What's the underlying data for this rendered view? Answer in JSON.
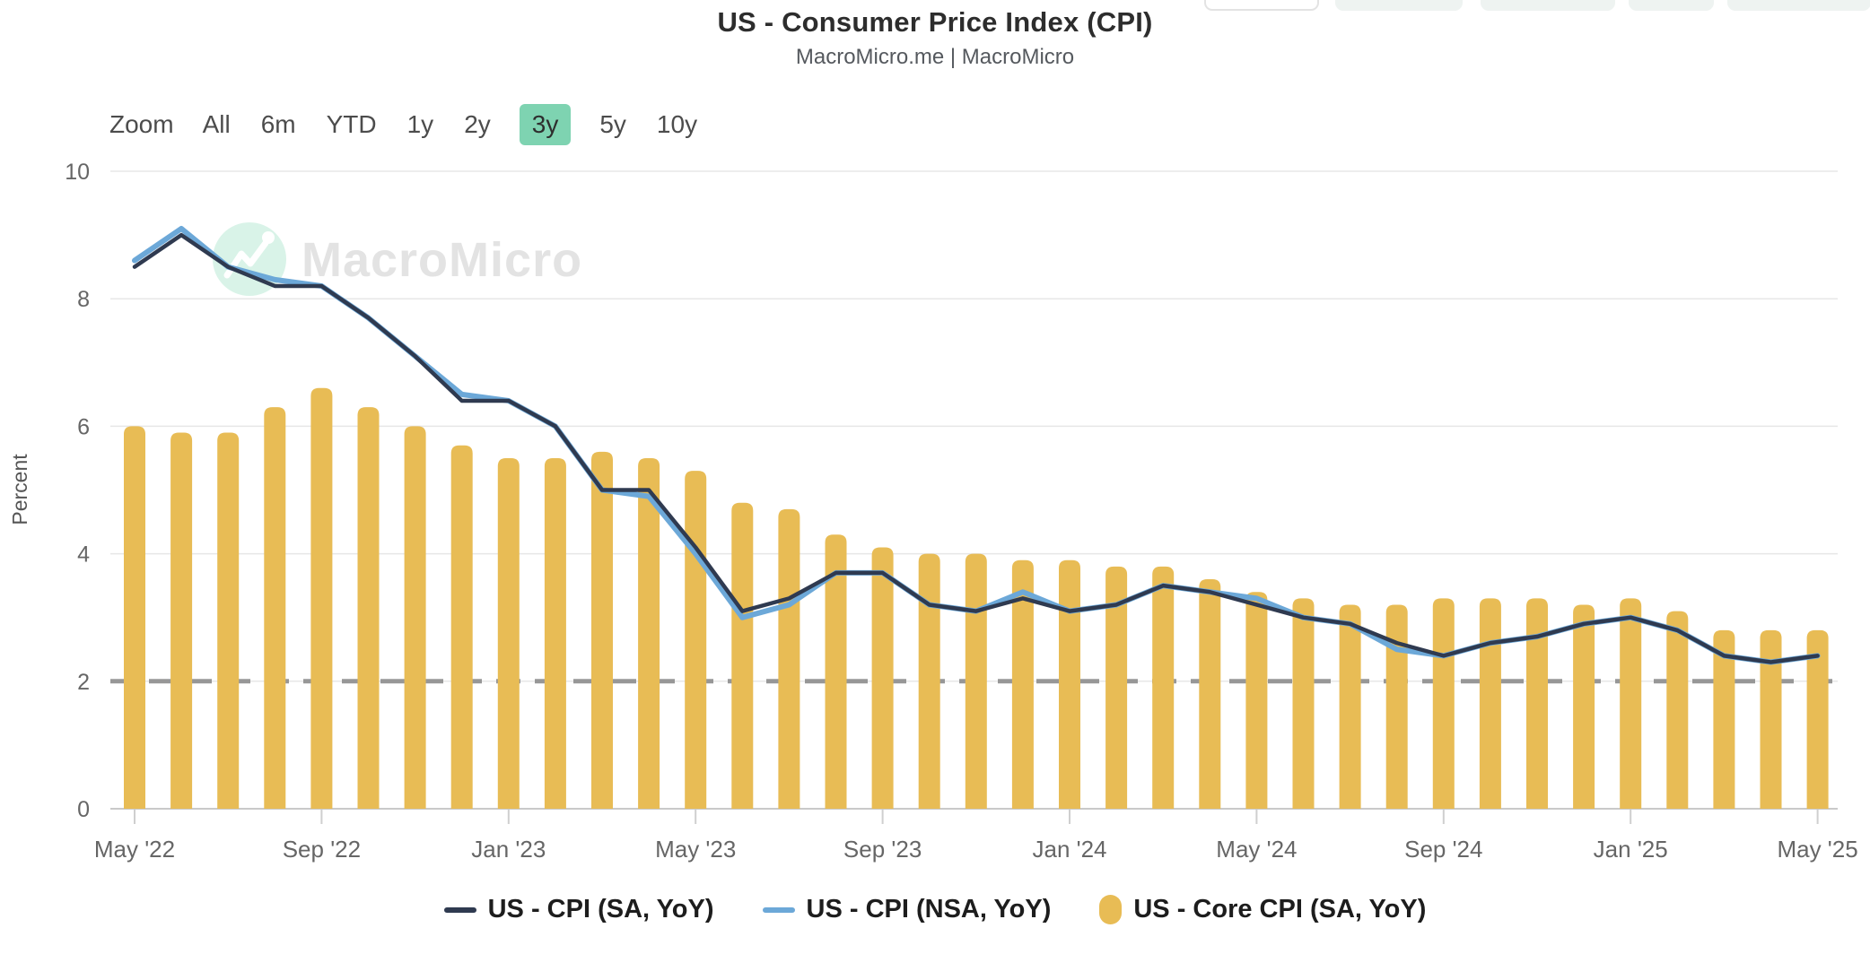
{
  "header": {
    "title": "US - Consumer Price Index (CPI)",
    "subtitle": "MacroMicro.me | MacroMicro"
  },
  "toolbar": {
    "zoom_label": "Zoom",
    "ranges": [
      {
        "label": "All",
        "selected": false
      },
      {
        "label": "6m",
        "selected": false
      },
      {
        "label": "YTD",
        "selected": false
      },
      {
        "label": "1y",
        "selected": false
      },
      {
        "label": "2y",
        "selected": false
      },
      {
        "label": "3y",
        "selected": true
      },
      {
        "label": "5y",
        "selected": false
      },
      {
        "label": "10y",
        "selected": false
      }
    ],
    "selected_bg": "#7ed3b1"
  },
  "watermark": {
    "text": "MacroMicro",
    "circle_color": "#d9f3e8",
    "text_color": "#e3e3e3"
  },
  "axes": {
    "y_label": "Percent",
    "y_ticks": [
      10,
      8,
      6,
      4,
      2,
      0
    ],
    "x_tick_labels": [
      "May '22",
      "Sep '22",
      "Jan '23",
      "May '23",
      "Sep '23",
      "Jan '24",
      "May '24",
      "Sep '24",
      "Jan '25",
      "May '25"
    ]
  },
  "legend": {
    "items": [
      {
        "label": "US - CPI (SA, YoY)",
        "type": "line",
        "color": "#2f3a50"
      },
      {
        "label": "US - CPI (NSA, YoY)",
        "type": "line",
        "color": "#6ca8d8"
      },
      {
        "label": "US - Core CPI (SA, YoY)",
        "type": "bar",
        "color": "#e8bc55"
      }
    ]
  },
  "chart_data": {
    "type": "combo",
    "title": "US - Consumer Price Index (CPI)",
    "ylabel": "Percent",
    "ylim": [
      0,
      10
    ],
    "y_gridlines": [
      0,
      2,
      4,
      6,
      8,
      10
    ],
    "grid": true,
    "legend_position": "bottom",
    "reference_line": {
      "value": 2,
      "style": "dashed",
      "color": "#979797"
    },
    "x": [
      "May '22",
      "Jun '22",
      "Jul '22",
      "Aug '22",
      "Sep '22",
      "Oct '22",
      "Nov '22",
      "Dec '22",
      "Jan '23",
      "Feb '23",
      "Mar '23",
      "Apr '23",
      "May '23",
      "Jun '23",
      "Jul '23",
      "Aug '23",
      "Sep '23",
      "Oct '23",
      "Nov '23",
      "Dec '23",
      "Jan '24",
      "Feb '24",
      "Mar '24",
      "Apr '24",
      "May '24",
      "Jun '24",
      "Jul '24",
      "Aug '24",
      "Sep '24",
      "Oct '24",
      "Nov '24",
      "Dec '24",
      "Jan '25",
      "Feb '25",
      "Mar '25",
      "Apr '25",
      "May '25"
    ],
    "x_tick_indices": [
      0,
      4,
      8,
      12,
      16,
      20,
      24,
      28,
      32,
      36
    ],
    "series": [
      {
        "name": "US - CPI (SA, YoY)",
        "type": "line",
        "color": "#2f3a50",
        "values": [
          8.5,
          9.0,
          8.5,
          8.2,
          8.2,
          7.7,
          7.1,
          6.4,
          6.4,
          6.0,
          5.0,
          5.0,
          4.1,
          3.1,
          3.3,
          3.7,
          3.7,
          3.2,
          3.1,
          3.3,
          3.1,
          3.2,
          3.5,
          3.4,
          3.2,
          3.0,
          2.9,
          2.6,
          2.4,
          2.6,
          2.7,
          2.9,
          3.0,
          2.8,
          2.4,
          2.3,
          2.4
        ]
      },
      {
        "name": "US - CPI (NSA, YoY)",
        "type": "line",
        "color": "#6ca8d8",
        "values": [
          8.6,
          9.1,
          8.5,
          8.3,
          8.2,
          7.7,
          7.1,
          6.5,
          6.4,
          6.0,
          5.0,
          4.9,
          4.0,
          3.0,
          3.2,
          3.7,
          3.7,
          3.2,
          3.1,
          3.4,
          3.1,
          3.2,
          3.5,
          3.4,
          3.3,
          3.0,
          2.9,
          2.5,
          2.4,
          2.6,
          2.7,
          2.9,
          3.0,
          2.8,
          2.4,
          2.3,
          2.4
        ]
      },
      {
        "name": "US - Core CPI (SA, YoY)",
        "type": "bar",
        "color": "#e8bc55",
        "values": [
          6.0,
          5.9,
          5.9,
          6.3,
          6.6,
          6.3,
          6.0,
          5.7,
          5.5,
          5.5,
          5.6,
          5.5,
          5.3,
          4.8,
          4.7,
          4.3,
          4.1,
          4.0,
          4.0,
          3.9,
          3.9,
          3.8,
          3.8,
          3.6,
          3.4,
          3.3,
          3.2,
          3.2,
          3.3,
          3.3,
          3.3,
          3.2,
          3.3,
          3.1,
          2.8,
          2.8,
          2.8
        ]
      }
    ]
  }
}
